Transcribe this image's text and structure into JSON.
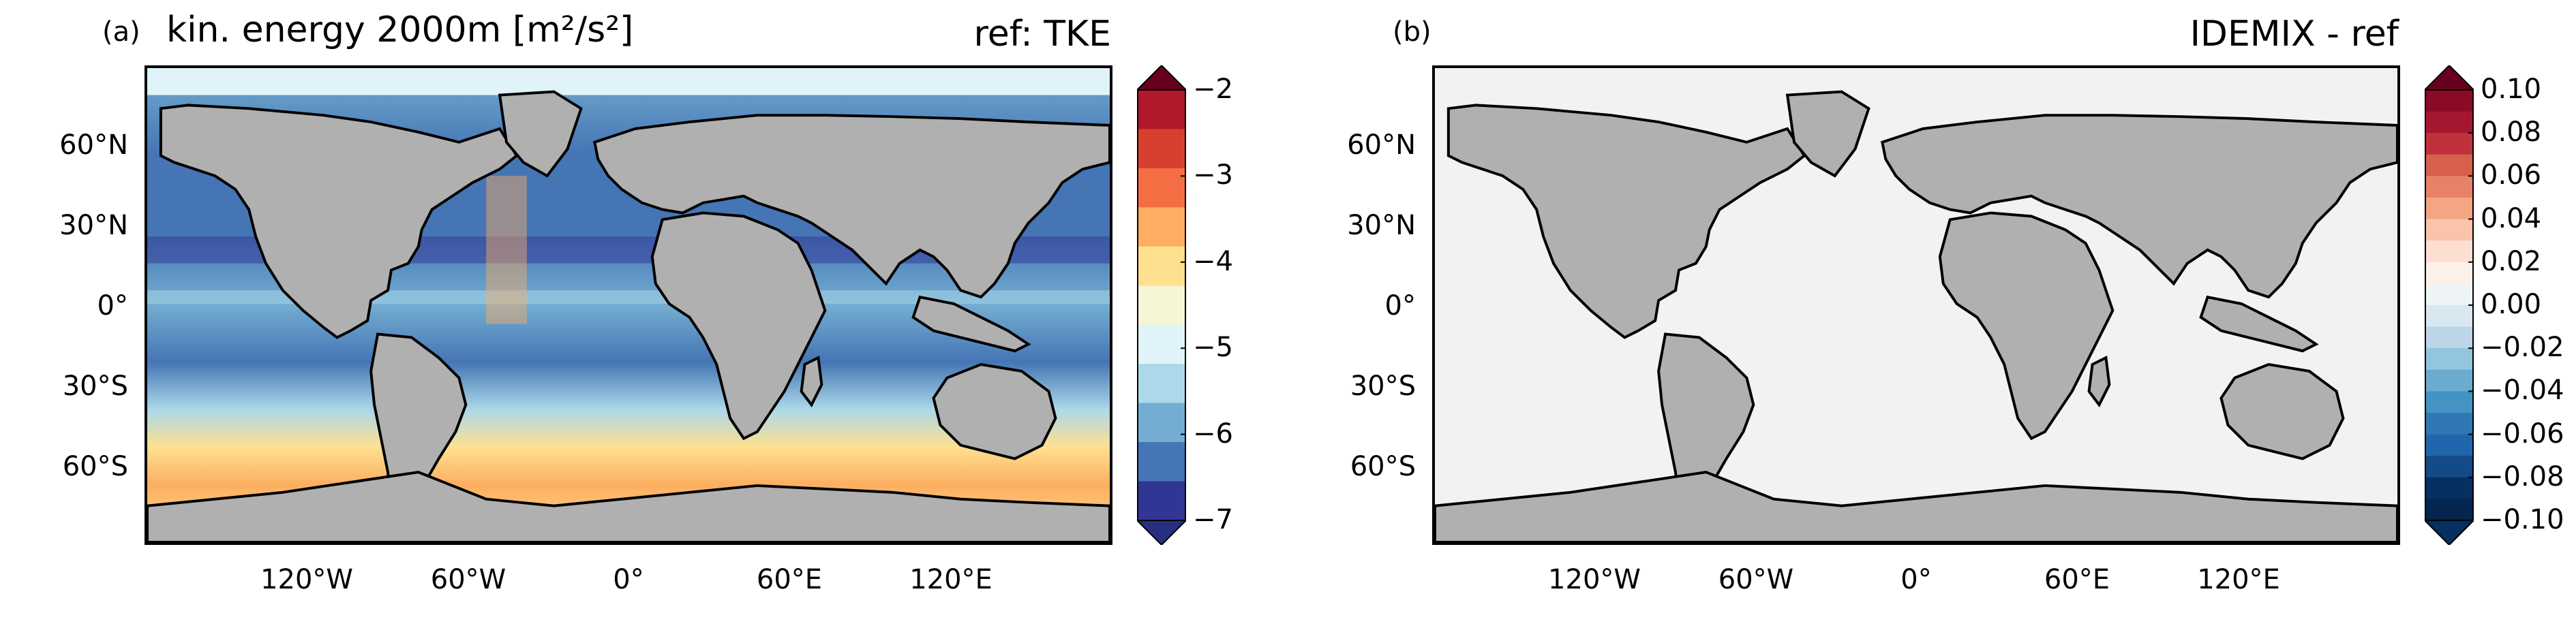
{
  "panels": [
    {
      "label": "(a)",
      "title_left": "kin. energy 2000m [m²/s²]",
      "title_right": "ref: TKE",
      "colorbar": {
        "ticks": [
          "−2",
          "−3",
          "−4",
          "−5",
          "−6",
          "−7"
        ],
        "colors": [
          "#b2182b",
          "#d6402e",
          "#f46d43",
          "#fdae61",
          "#fee090",
          "#f6f5d5",
          "#e0f3f8",
          "#abd9e9",
          "#74add1",
          "#4575b4",
          "#313695"
        ],
        "extend_top": "#67001f",
        "extend_bottom": "#262f80"
      }
    },
    {
      "label": "(b)",
      "title_left": "",
      "title_right": "IDEMIX - ref",
      "colorbar": {
        "ticks": [
          "0.10",
          "0.08",
          "0.06",
          "0.04",
          "0.02",
          "0.00",
          "−0.02",
          "−0.04",
          "−0.06",
          "−0.08",
          "−0.10"
        ],
        "colors": [
          "#8b0a26",
          "#a51730",
          "#c0323b",
          "#d6604d",
          "#e58267",
          "#f4a582",
          "#f9c4aa",
          "#fbe0d2",
          "#fbf0ea",
          "#eef3f6",
          "#d8e7f1",
          "#bad6e8",
          "#92c5de",
          "#6aacd0",
          "#4393c3",
          "#2f78b4",
          "#2166ac",
          "#134a87",
          "#053061",
          "#042550"
        ],
        "extend_top": "#67001f",
        "extend_bottom": "#053061"
      }
    }
  ],
  "axes": {
    "lat_ticks": [
      "60°N",
      "30°N",
      "0°",
      "30°S",
      "60°S"
    ],
    "lon_ticks": [
      "120°W",
      "60°W",
      "0°",
      "60°E",
      "120°E"
    ]
  },
  "style": {
    "land_color": "#b0b0b0",
    "coast_color": "#000000"
  }
}
